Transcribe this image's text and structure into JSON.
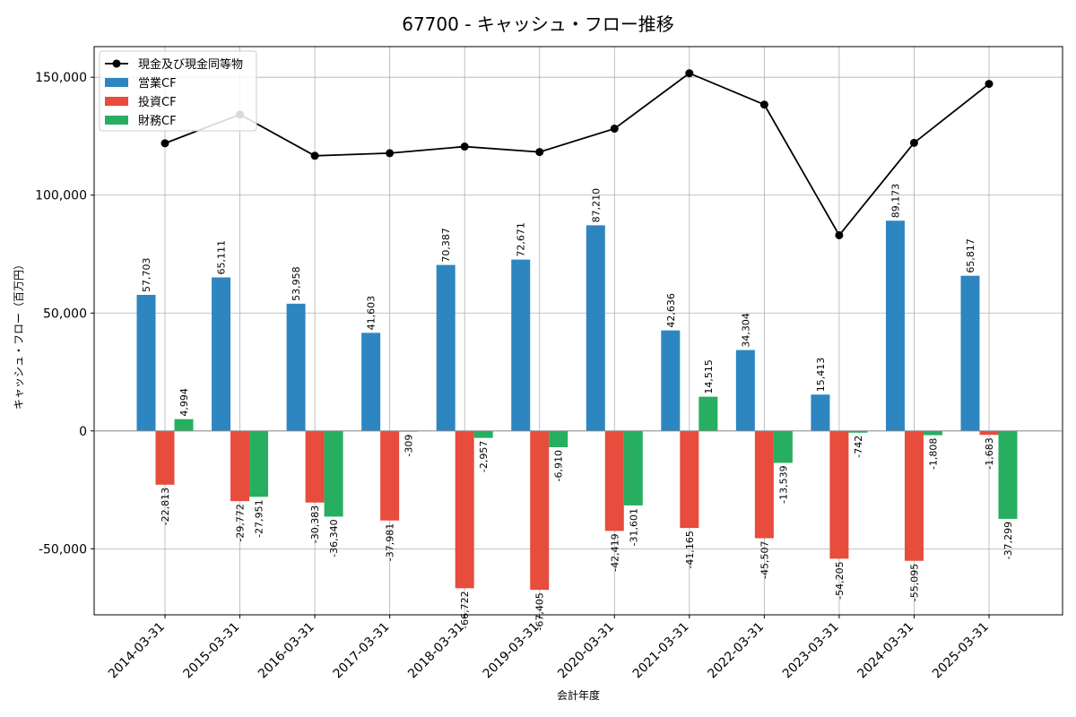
{
  "chart_data": {
    "type": "bar",
    "title": "67700 - キャッシュ・フロー推移",
    "xlabel": "会計年度",
    "ylabel": "キャッシュ・フロー（百万円）",
    "ylim": [
      -78000,
      163000
    ],
    "yticks": [
      -50000,
      0,
      50000,
      100000,
      150000
    ],
    "ytick_labels": [
      "-50,000",
      "0",
      "50,000",
      "100,000",
      "150,000"
    ],
    "grid": true,
    "legend_position": "top-left",
    "categories": [
      "2014-03-31",
      "2015-03-31",
      "2016-03-31",
      "2017-03-31",
      "2018-03-31",
      "2019-03-31",
      "2020-03-31",
      "2021-03-31",
      "2022-03-31",
      "2023-03-31",
      "2024-03-31",
      "2025-03-31"
    ],
    "series": [
      {
        "name": "営業CF",
        "kind": "bar",
        "color": "#2e86c1",
        "values": [
          57703,
          65111,
          53958,
          41603,
          70387,
          72671,
          87210,
          42636,
          34304,
          15413,
          89173,
          65817
        ],
        "labels": [
          "57,703",
          "65,111",
          "53,958",
          "41,603",
          "70,387",
          "72,671",
          "87,210",
          "42,636",
          "34,304",
          "15,413",
          "89,173",
          "65,817"
        ]
      },
      {
        "name": "投資CF",
        "kind": "bar",
        "color": "#e74c3c",
        "values": [
          -22813,
          -29772,
          -30383,
          -37981,
          -66722,
          -67405,
          -42419,
          -41165,
          -45507,
          -54205,
          -55095,
          -1683
        ],
        "labels": [
          "-22,813",
          "-29,772",
          "-30,383",
          "-37,981",
          "-66,722",
          "-67,405",
          "-42,419",
          "-41,165",
          "-45,507",
          "-54,205",
          "-55,095",
          "-1,683"
        ]
      },
      {
        "name": "財務CF",
        "kind": "bar",
        "color": "#27ae60",
        "values": [
          4994,
          -27951,
          -36340,
          -309,
          -2957,
          -6910,
          -31601,
          14515,
          -13539,
          -742,
          -1808,
          -37299
        ],
        "labels": [
          "4,994",
          "-27,951",
          "-36,340",
          "-309",
          "-2,957",
          "-6,910",
          "-31,601",
          "14,515",
          "-13,539",
          "-742",
          "-1,808",
          "-37,299"
        ]
      },
      {
        "name": "現金及び現金同等物",
        "kind": "line",
        "color": "#000000",
        "values": [
          122000,
          134200,
          116700,
          117800,
          120600,
          118300,
          128200,
          151700,
          138400,
          83000,
          122200,
          147200
        ]
      }
    ]
  }
}
